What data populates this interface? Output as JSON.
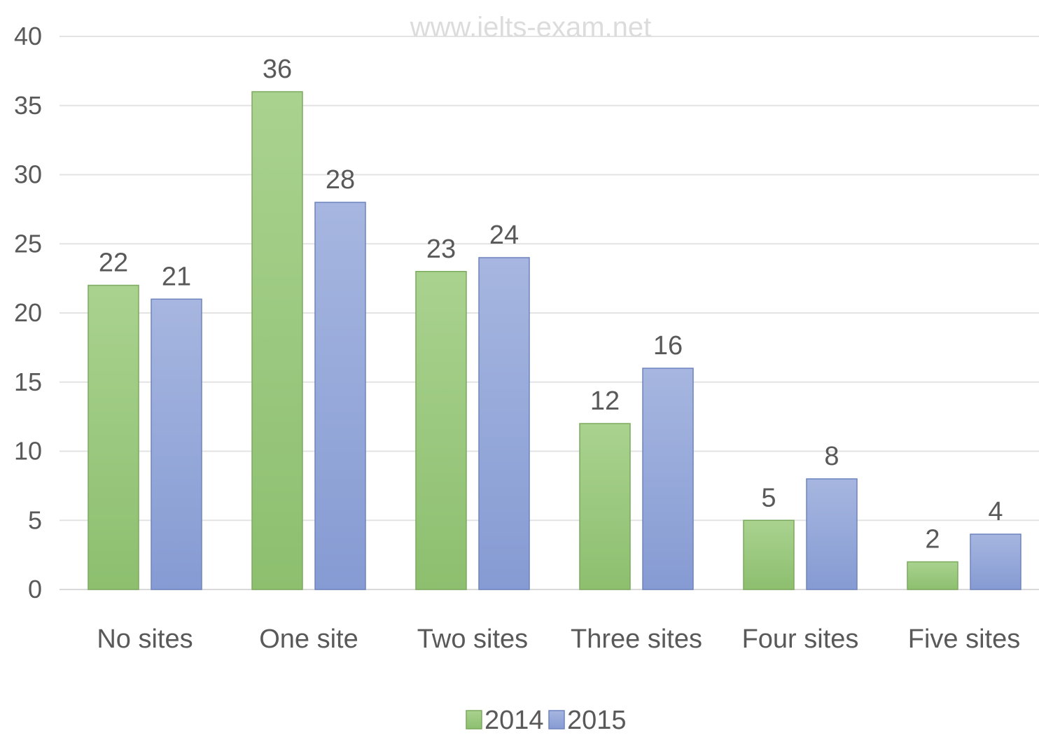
{
  "watermark": "www.ielts-exam.net",
  "chart_data": {
    "type": "bar",
    "categories": [
      "No sites",
      "One site",
      "Two sites",
      "Three sites",
      "Four sites",
      "Five sites"
    ],
    "series": [
      {
        "name": "2014",
        "values": [
          22,
          36,
          23,
          12,
          5,
          2
        ],
        "color": "#92c47d"
      },
      {
        "name": "2015",
        "values": [
          21,
          28,
          24,
          16,
          8,
          4
        ],
        "color": "#8fa4d8"
      }
    ],
    "y_ticks": [
      "0",
      "5",
      "10",
      "15",
      "20",
      "25",
      "30",
      "35",
      "40"
    ],
    "ylim": [
      0,
      40
    ],
    "grid": true,
    "legend_position": "bottom",
    "title": "",
    "xlabel": "",
    "ylabel": ""
  }
}
